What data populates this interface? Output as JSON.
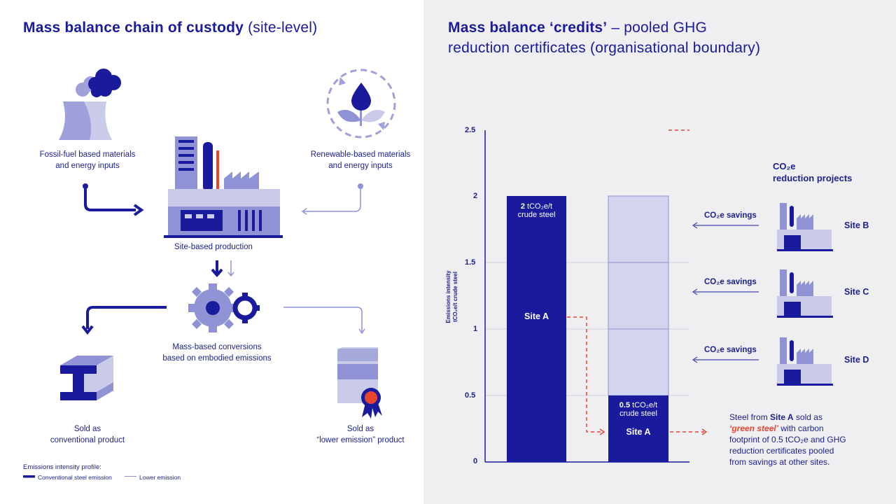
{
  "left": {
    "title_bold": "Mass balance chain of custody",
    "title_light": " (site-level)",
    "fossil_label_1": "Fossil-fuel based materials",
    "fossil_label_2": "and energy inputs",
    "renewable_label_1": "Renewable-based materials",
    "renewable_label_2": "and energy inputs",
    "site_label": "Site-based production",
    "conversion_label_1": "Mass-based conversions",
    "conversion_label_2": "based on embodied emissions",
    "conventional_label_1": "Sold as",
    "conventional_label_2": "conventional product",
    "lower_label_1": "Sold as",
    "lower_label_2": "“lower emission” product",
    "legend_title": "Emissions intensity profile:",
    "legend_conventional": "Conventional steel emission",
    "legend_lower": "Lower emission"
  },
  "right": {
    "title_bold": "Mass balance ‘credits’",
    "title_rest_1": " – pooled GHG",
    "title_line_2": "reduction certificates (organisational boundary)",
    "projects_1": "CO₂e",
    "projects_2": "reduction projects",
    "savings_label": "CO₂e savings",
    "sites": [
      "Site B",
      "Site C",
      "Site D"
    ],
    "bar1_value": "2",
    "bar1_unit": " tCO₂e/t",
    "bar1_unit2": "crude steel",
    "bar1_site": "Site A",
    "bar2_value": "0.5",
    "bar2_unit": " tCO₂e/t",
    "bar2_unit2": "crude steel",
    "bar2_site": "Site A",
    "note_1a": "Steel from ",
    "note_1b": "Site A",
    "note_1c": " sold as",
    "note_2a": "‘green steel’",
    "note_2b": " with carbon",
    "note_3": "footprint of 0.5 tCO₂e and GHG",
    "note_4": "reduction certificates pooled",
    "note_5": "from savings at other sites."
  },
  "chart_data": {
    "type": "bar",
    "ylabel_1": "Emissions intensity",
    "ylabel_2": "tCO₂e/t crude steel",
    "ylim": [
      0,
      2.5
    ],
    "ticks": [
      "0",
      "0.5",
      "1",
      "1.5",
      "2",
      "2.5"
    ],
    "series": [
      {
        "values": [
          2,
          0.5
        ]
      },
      {
        "values": [
          0,
          1.5
        ]
      }
    ],
    "stack_segments": [
      0.5,
      0.5,
      0.5,
      0.5
    ]
  },
  "colors": {
    "navy": "#1a1a9c",
    "light": "#c9cbe8",
    "mid": "#8f92d4",
    "red": "#e8452f"
  }
}
